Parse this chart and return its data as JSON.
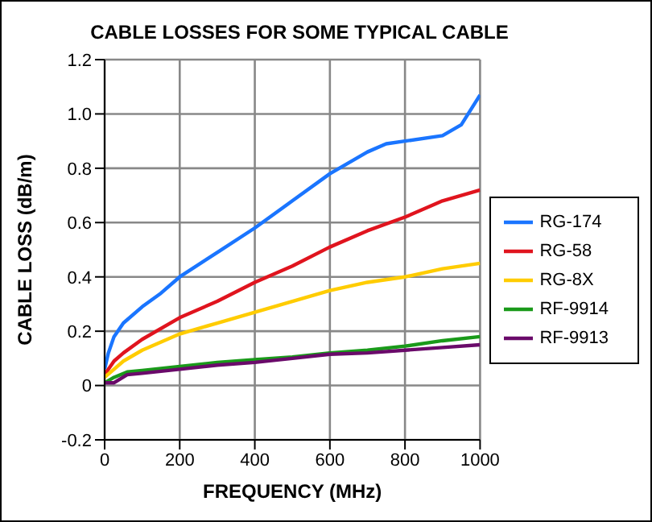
{
  "chart_data": {
    "type": "line",
    "title": "CABLE LOSSES FOR SOME TYPICAL CABLE",
    "xlabel": "FREQUENCY (MHz)",
    "ylabel": "CABLE LOSS (dB/m)",
    "xlim": [
      0,
      1000
    ],
    "xticks": [
      0,
      200,
      400,
      600,
      800,
      1000
    ],
    "ylim": [
      -0.2,
      1.2
    ],
    "yticks": [
      -0.2,
      0,
      0.2,
      0.4,
      0.6,
      0.8,
      {
        "value": 1,
        "label": "1.0"
      },
      1.2
    ],
    "grid": true,
    "legend": "right",
    "marker": "none",
    "line_style": "solid",
    "series": [
      {
        "name": "RG-174",
        "color": "#1a75ff",
        "x": [
          0,
          10,
          25,
          50,
          100,
          150,
          200,
          300,
          400,
          500,
          600,
          700,
          750,
          800,
          900,
          950,
          1000
        ],
        "values": [
          0.06,
          0.12,
          0.18,
          0.23,
          0.29,
          0.34,
          0.4,
          0.49,
          0.58,
          0.68,
          0.78,
          0.86,
          0.89,
          0.9,
          0.92,
          0.96,
          1.07
        ]
      },
      {
        "name": "RG-58",
        "color": "#e0141e",
        "x": [
          0,
          25,
          50,
          100,
          200,
          300,
          400,
          500,
          600,
          700,
          800,
          900,
          1000
        ],
        "values": [
          0.04,
          0.09,
          0.12,
          0.17,
          0.25,
          0.31,
          0.38,
          0.44,
          0.51,
          0.57,
          0.62,
          0.68,
          0.72
        ]
      },
      {
        "name": "RG-8X",
        "color": "#ffcc00",
        "x": [
          0,
          25,
          50,
          100,
          200,
          300,
          400,
          500,
          600,
          700,
          800,
          900,
          1000
        ],
        "values": [
          0.03,
          0.06,
          0.09,
          0.13,
          0.19,
          0.23,
          0.27,
          0.31,
          0.35,
          0.38,
          0.4,
          0.43,
          0.45
        ]
      },
      {
        "name": "RF-9914",
        "color": "#1a9a1a",
        "x": [
          0,
          25,
          60,
          100,
          200,
          300,
          400,
          500,
          600,
          700,
          800,
          900,
          1000
        ],
        "values": [
          0.01,
          0.03,
          0.05,
          0.055,
          0.07,
          0.085,
          0.095,
          0.105,
          0.12,
          0.13,
          0.145,
          0.165,
          0.18
        ]
      },
      {
        "name": "RF-9913",
        "color": "#6a0a6a",
        "x": [
          0,
          25,
          60,
          100,
          200,
          300,
          400,
          500,
          600,
          700,
          800,
          900,
          1000
        ],
        "values": [
          0.01,
          0.01,
          0.04,
          0.045,
          0.06,
          0.075,
          0.085,
          0.1,
          0.115,
          0.12,
          0.13,
          0.14,
          0.15
        ]
      }
    ]
  }
}
